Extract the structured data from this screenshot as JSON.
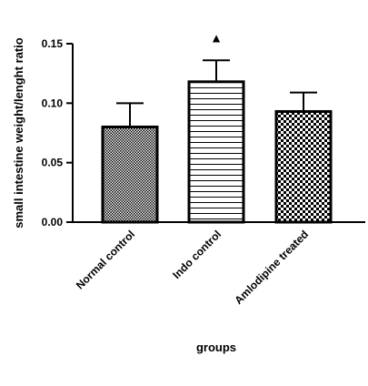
{
  "chart_data": {
    "type": "bar",
    "title": "",
    "xlabel": "groups",
    "ylabel": "small intestine weight/lenght ratio",
    "ylim": [
      0,
      0.15
    ],
    "yticks": [
      "0.00",
      "0.05",
      "0.10",
      "0.15"
    ],
    "categories": [
      "Normal control",
      "Indo control",
      "Amlodipine treated"
    ],
    "values": [
      0.08,
      0.118,
      0.093
    ],
    "errors": [
      0.02,
      0.018,
      0.016
    ],
    "patterns": [
      "fine-crosshatch",
      "horizontal-stripes",
      "checkerboard"
    ],
    "annotations": [
      {
        "category": "Indo control",
        "symbol": "▲"
      }
    ],
    "colors": {
      "stroke": "#000000",
      "fill": "#ffffff"
    }
  }
}
